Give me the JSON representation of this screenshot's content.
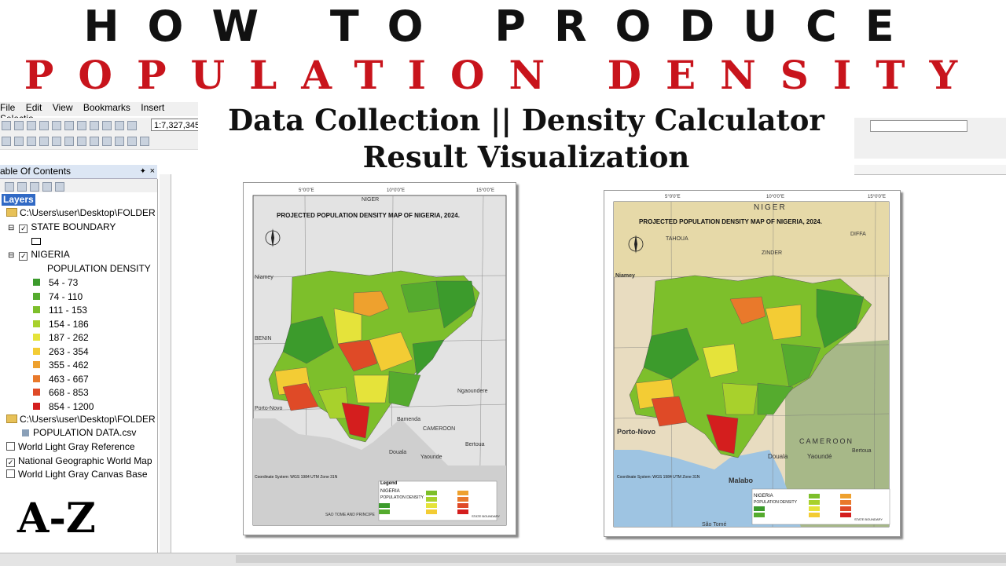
{
  "title_line1": "HOW TO PRODUCE",
  "title_line2": "POPULATION DENSITY MAP",
  "subtitle_line1": "Data Collection || Density Calculator",
  "subtitle_line2": "Result Visualization",
  "corner_label": "A-Z",
  "menu": [
    "File",
    "Edit",
    "View",
    "Bookmarks",
    "Insert",
    "Selectio"
  ],
  "scale_value": "1:7,327,345",
  "toc": {
    "header": "able Of Contents",
    "layers_label": "Layers",
    "folder1": "C:\\Users\\user\\Desktop\\FOLDER",
    "state_boundary": "STATE BOUNDARY",
    "nigeria": "NIGERIA",
    "density_label": "POPULATION DENSITY",
    "classes": [
      {
        "label": "54 - 73",
        "color": "#3c9b2c"
      },
      {
        "label": "74 - 110",
        "color": "#55ab2e"
      },
      {
        "label": "111 - 153",
        "color": "#7dbf2b"
      },
      {
        "label": "154 - 186",
        "color": "#a8d12c"
      },
      {
        "label": "187 - 262",
        "color": "#e5e33a"
      },
      {
        "label": "263 - 354",
        "color": "#f3cc34"
      },
      {
        "label": "355 - 462",
        "color": "#eea12e"
      },
      {
        "label": "463 - 667",
        "color": "#e9792b"
      },
      {
        "label": "668 - 853",
        "color": "#df4a27"
      },
      {
        "label": "854 - 1200",
        "color": "#d41e1e"
      }
    ],
    "folder2": "C:\\Users\\user\\Desktop\\FOLDER",
    "csv": "POPULATION DATA.csv",
    "basemaps": [
      {
        "label": "World Light Gray Reference",
        "checked": false
      },
      {
        "label": "National Geographic World Map",
        "checked": true
      },
      {
        "label": "World Light Gray Canvas Base",
        "checked": false
      }
    ]
  },
  "maps": {
    "left": {
      "title": "PROJECTED POPULATION DENSITY MAP OF NIGERIA, 2024.",
      "top_ticks": [
        "5°0'0\"E",
        "10°0'0\"E",
        "15°0'0\"E"
      ],
      "places": [
        "NIGER",
        "BENIN",
        "CAMEROON",
        "Douala",
        "Yaounde",
        "Bertoua",
        "Ngaoundere",
        "Bamenda",
        "Niamey",
        "Porto-Novo",
        "SAO TOME AND PRINCIPE"
      ],
      "legend_title": "Legend",
      "legend_nigeria": "NIGERIA",
      "legend_density": "POPULATION DENSITY",
      "legend_boundary": "STATE BOUNDARY",
      "coord_info": "Coordinate System: WGS 1984 UTM Zone 31N"
    },
    "right": {
      "title": "PROJECTED POPULATION DENSITY MAP OF NIGERIA, 2024.",
      "top_ticks": [
        "5°0'0\"E",
        "10°0'0\"E",
        "15°0'0\"E"
      ],
      "places": [
        "NIGER",
        "TAHOUA",
        "ZINDER",
        "DIFFA",
        "Niamey",
        "Porto-Novo",
        "CAMEROON",
        "Yaoundé",
        "Douala",
        "Malabo",
        "Bertoua",
        "São Tomé"
      ],
      "legend_nigeria": "NIGERIA",
      "legend_density": "POPULATION DENSITY",
      "legend_boundary": "STATE BOUNDARY",
      "coord_info": "Coordinate System: WGS 1984 UTM Zone 31N"
    }
  }
}
